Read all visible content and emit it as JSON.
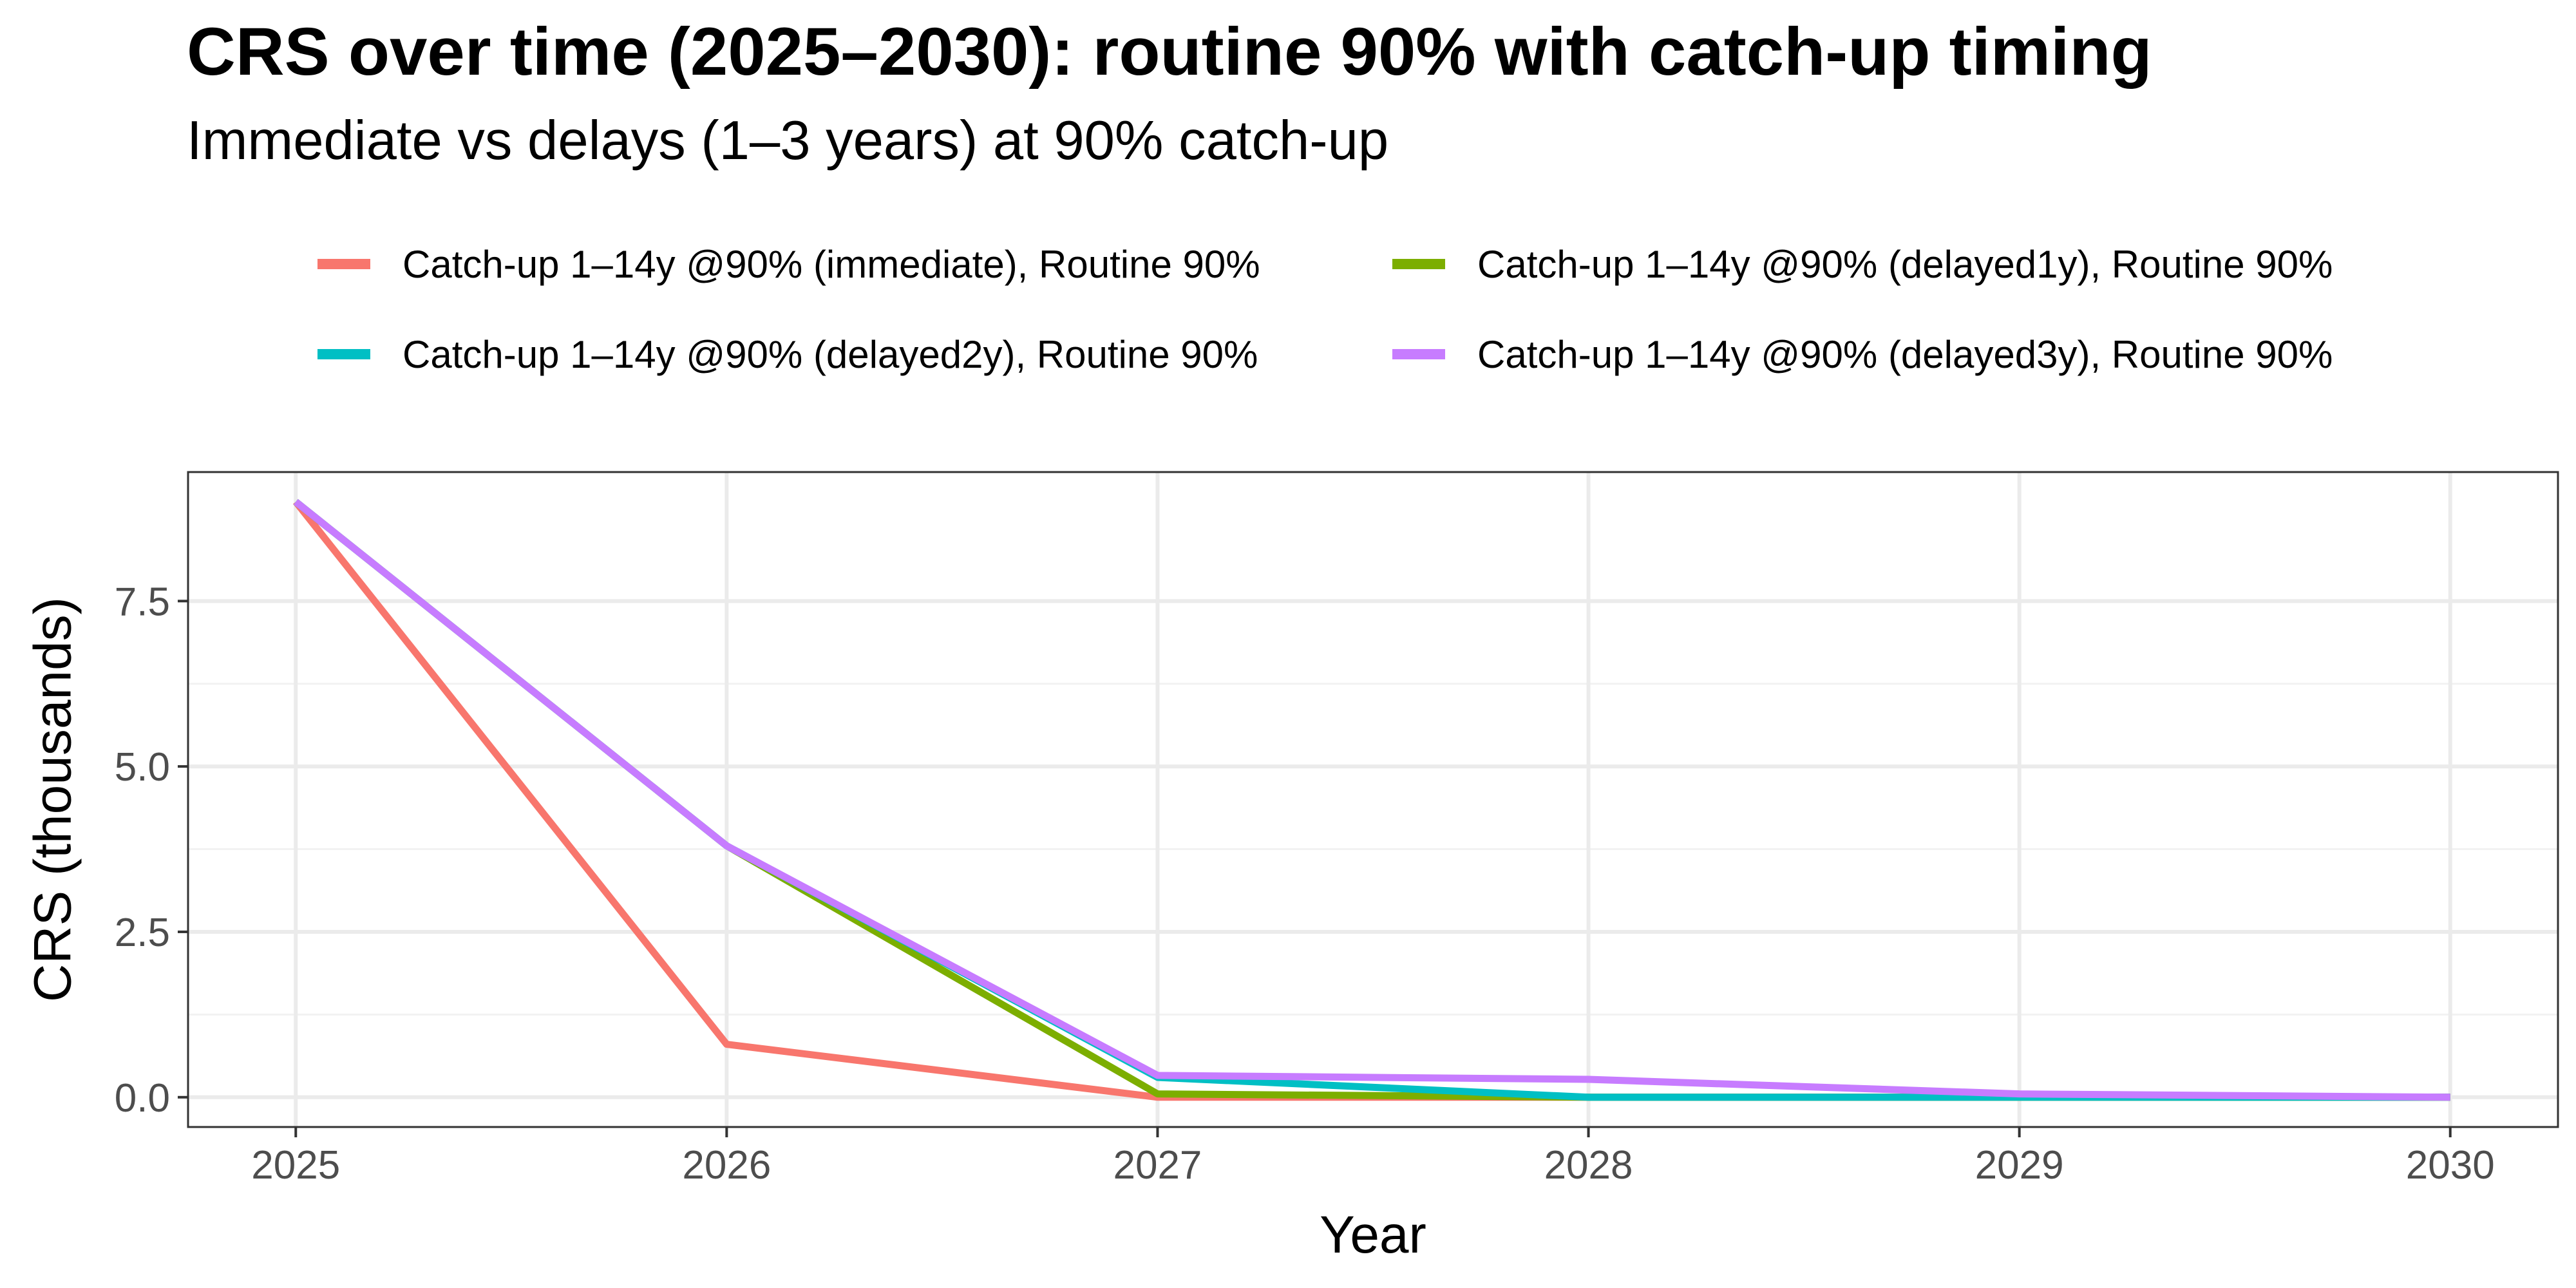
{
  "chart_data": {
    "type": "line",
    "title": "CRS over time (2025–2030): routine 90% with catch-up timing",
    "subtitle": "Immediate vs delays (1–3 years) at 90% catch-up",
    "xlabel": "Year",
    "ylabel": "CRS (thousands)",
    "x": [
      2025,
      2026,
      2027,
      2028,
      2029,
      2030
    ],
    "x_tick_labels": [
      "2025",
      "2026",
      "2027",
      "2028",
      "2029",
      "2030"
    ],
    "y_tick_labels": [
      "0.0",
      "2.5",
      "5.0",
      "7.5"
    ],
    "y_ticks": [
      0,
      2.5,
      5,
      7.5
    ],
    "xlim": [
      2024.75,
      2030.25
    ],
    "ylim": [
      -0.45,
      9.45
    ],
    "grid": true,
    "legend_position": "top",
    "series": [
      {
        "name": "Catch-up 1–14y @90% (immediate), Routine 90%",
        "color": "#F8766D",
        "values": [
          9.0,
          0.8,
          0.0,
          0.0,
          0.0,
          0.0
        ]
      },
      {
        "name": "Catch-up 1–14y @90% (delayed1y), Routine 90%",
        "color": "#7CAE00",
        "values": [
          9.0,
          3.8,
          0.05,
          0.0,
          0.0,
          0.0
        ]
      },
      {
        "name": "Catch-up 1–14y @90% (delayed2y), Routine 90%",
        "color": "#00BFC4",
        "values": [
          9.0,
          3.8,
          0.3,
          0.0,
          0.0,
          0.0
        ]
      },
      {
        "name": "Catch-up 1–14y @90% (delayed3y), Routine 90%",
        "color": "#C77CFF",
        "values": [
          9.0,
          3.8,
          0.33,
          0.27,
          0.05,
          0.0
        ]
      }
    ]
  }
}
